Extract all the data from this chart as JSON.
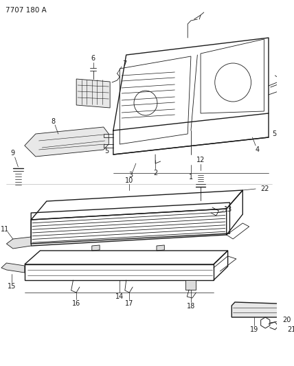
{
  "diagram_id": "7707 180 A",
  "bg_color": "#ffffff",
  "line_color": "#1a1a1a",
  "figsize": [
    4.28,
    5.33
  ],
  "dpi": 100
}
